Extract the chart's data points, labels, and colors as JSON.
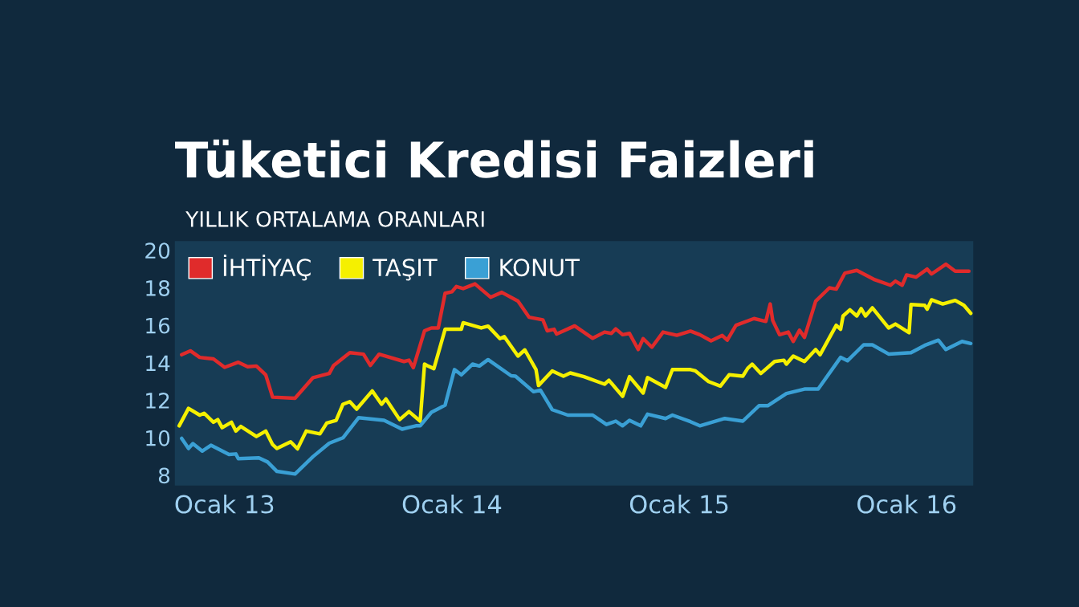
{
  "chart_data": {
    "type": "line",
    "title": "Tüketici Kredisi Faizleri",
    "subtitle": "YILLIK ORTALAMA ORANLARI",
    "xlim": [
      "2012-10-13",
      "2016-04-17"
    ],
    "xticks": [
      {
        "value": "2013-01-01",
        "label": "Ocak 13"
      },
      {
        "value": "2014-01-01",
        "label": "Ocak 14"
      },
      {
        "value": "2015-01-01",
        "label": "Ocak 15"
      },
      {
        "value": "2016-01-01",
        "label": "Ocak 16"
      }
    ],
    "ylim": [
      7.45,
      20.5
    ],
    "yticks": [
      8,
      10,
      12,
      14,
      16,
      18,
      20
    ],
    "legend": "top left",
    "line_style": "solid",
    "series": [
      {
        "name": "İHTİYAÇ",
        "color": "#e02b2b",
        "x": [
          "2012-10-24",
          "2012-11-07",
          "2012-11-22",
          "2012-12-14",
          "2013-01-01",
          "2013-01-23",
          "2013-02-07",
          "2013-02-21",
          "2013-03-08",
          "2013-03-19",
          "2013-04-24",
          "2013-05-23",
          "2013-06-18",
          "2013-06-25",
          "2013-07-21",
          "2013-08-12",
          "2013-08-23",
          "2013-09-06",
          "2013-10-16",
          "2013-10-24",
          "2013-10-31",
          "2013-11-18",
          "2013-11-29",
          "2013-12-10",
          "2013-12-21",
          "2014-01-01",
          "2014-01-08",
          "2014-01-19",
          "2014-02-07",
          "2014-03-04",
          "2014-03-22",
          "2014-04-17",
          "2014-05-05",
          "2014-05-27",
          "2014-06-03",
          "2014-06-14",
          "2014-06-18",
          "2014-07-17",
          "2014-08-15",
          "2014-09-03",
          "2014-09-14",
          "2014-09-21",
          "2014-10-02",
          "2014-10-13",
          "2014-10-27",
          "2014-11-04",
          "2014-11-18",
          "2014-12-06",
          "2014-12-28",
          "2015-01-19",
          "2015-02-03",
          "2015-02-21",
          "2015-03-11",
          "2015-03-19",
          "2015-04-02",
          "2015-05-01",
          "2015-05-20",
          "2015-05-27",
          "2015-05-31",
          "2015-06-11",
          "2015-06-25",
          "2015-07-03",
          "2015-07-13",
          "2015-07-21",
          "2015-08-08",
          "2015-08-30",
          "2015-09-10",
          "2015-09-24",
          "2015-10-13",
          "2015-11-11",
          "2015-12-06",
          "2015-12-14",
          "2015-12-25",
          "2016-01-01",
          "2016-01-16",
          "2016-02-03",
          "2016-02-10",
          "2016-03-04",
          "2016-03-19",
          "2016-04-10"
        ],
        "values": [
          14.43,
          14.64,
          14.29,
          14.21,
          13.76,
          14.03,
          13.79,
          13.83,
          13.36,
          12.17,
          12.11,
          13.21,
          13.43,
          13.86,
          14.54,
          14.46,
          13.86,
          14.46,
          14.07,
          14.14,
          13.74,
          15.71,
          15.86,
          15.86,
          17.71,
          17.79,
          18.07,
          17.96,
          18.21,
          17.5,
          17.76,
          17.29,
          16.43,
          16.29,
          15.71,
          15.79,
          15.54,
          15.97,
          15.31,
          15.64,
          15.57,
          15.81,
          15.5,
          15.57,
          14.71,
          15.29,
          14.83,
          15.64,
          15.47,
          15.69,
          15.5,
          15.17,
          15.46,
          15.21,
          16.0,
          16.36,
          16.21,
          17.14,
          16.26,
          15.5,
          15.64,
          15.14,
          15.74,
          15.36,
          17.29,
          18.0,
          17.93,
          18.79,
          18.93,
          18.43,
          18.14,
          18.36,
          18.14,
          18.69,
          18.57,
          19.0,
          18.74,
          19.26,
          18.89,
          18.89
        ]
      },
      {
        "name": "TAŞIT",
        "color": "#f5f000",
        "x": [
          "2012-10-20",
          "2012-11-04",
          "2012-11-22",
          "2012-11-29",
          "2012-12-14",
          "2012-12-21",
          "2012-12-28",
          "2013-01-12",
          "2013-01-19",
          "2013-01-27",
          "2013-02-21",
          "2013-03-08",
          "2013-03-19",
          "2013-03-26",
          "2013-04-17",
          "2013-04-28",
          "2013-05-12",
          "2013-06-03",
          "2013-06-14",
          "2013-06-29",
          "2013-07-10",
          "2013-07-21",
          "2013-08-01",
          "2013-08-26",
          "2013-09-10",
          "2013-09-17",
          "2013-10-09",
          "2013-10-24",
          "2013-11-11",
          "2013-11-18",
          "2013-11-22",
          "2013-12-03",
          "2013-12-21",
          "2014-01-16",
          "2014-01-19",
          "2014-02-17",
          "2014-02-28",
          "2014-03-19",
          "2014-03-26",
          "2014-04-17",
          "2014-04-28",
          "2014-05-16",
          "2014-05-20",
          "2014-06-11",
          "2014-06-29",
          "2014-07-10",
          "2014-08-01",
          "2014-09-03",
          "2014-09-10",
          "2014-10-02",
          "2014-10-13",
          "2014-11-04",
          "2014-11-11",
          "2014-12-10",
          "2014-12-21",
          "2015-01-19",
          "2015-01-27",
          "2015-02-17",
          "2015-03-08",
          "2015-03-22",
          "2015-04-13",
          "2015-04-21",
          "2015-04-28",
          "2015-05-12",
          "2015-06-03",
          "2015-06-18",
          "2015-06-22",
          "2015-07-03",
          "2015-07-21",
          "2015-08-08",
          "2015-08-15",
          "2015-09-10",
          "2015-09-17",
          "2015-09-21",
          "2015-10-02",
          "2015-10-13",
          "2015-10-20",
          "2015-10-27",
          "2015-11-07",
          "2015-12-03",
          "2015-12-14",
          "2016-01-05",
          "2016-01-08",
          "2016-01-30",
          "2016-02-03",
          "2016-02-10",
          "2016-02-28",
          "2016-03-19",
          "2016-04-02",
          "2016-04-13"
        ],
        "values": [
          10.64,
          11.57,
          11.21,
          11.31,
          10.83,
          10.97,
          10.54,
          10.83,
          10.36,
          10.61,
          10.07,
          10.36,
          9.64,
          9.43,
          9.79,
          9.41,
          10.36,
          10.21,
          10.79,
          10.93,
          11.79,
          11.93,
          11.53,
          12.5,
          11.79,
          12.07,
          10.97,
          11.4,
          10.89,
          13.93,
          13.86,
          13.69,
          15.79,
          15.79,
          16.14,
          15.86,
          15.96,
          15.29,
          15.4,
          14.36,
          14.69,
          13.64,
          12.79,
          13.57,
          13.29,
          13.46,
          13.26,
          12.86,
          13.07,
          12.21,
          13.26,
          12.39,
          13.21,
          12.69,
          13.64,
          13.64,
          13.57,
          13.0,
          12.76,
          13.36,
          13.29,
          13.71,
          13.93,
          13.43,
          14.07,
          14.14,
          13.93,
          14.36,
          14.07,
          14.71,
          14.43,
          16.0,
          15.79,
          16.5,
          16.83,
          16.5,
          16.89,
          16.5,
          16.93,
          15.86,
          16.07,
          15.61,
          17.11,
          17.07,
          16.86,
          17.36,
          17.14,
          17.33,
          17.07,
          16.64
        ]
      },
      {
        "name": "KONUT",
        "color": "#3aa0d5",
        "x": [
          "2012-10-24",
          "2012-11-04",
          "2012-11-11",
          "2012-11-26",
          "2012-12-10",
          "2013-01-08",
          "2013-01-19",
          "2013-01-23",
          "2013-02-25",
          "2013-03-11",
          "2013-03-26",
          "2013-04-24",
          "2013-05-23",
          "2013-06-18",
          "2013-07-10",
          "2013-08-04",
          "2013-09-14",
          "2013-10-13",
          "2013-11-04",
          "2013-11-11",
          "2013-11-29",
          "2013-12-21",
          "2014-01-05",
          "2014-01-16",
          "2014-02-03",
          "2014-02-14",
          "2014-02-28",
          "2014-04-06",
          "2014-04-13",
          "2014-05-12",
          "2014-05-23",
          "2014-06-11",
          "2014-07-06",
          "2014-08-15",
          "2014-09-06",
          "2014-09-21",
          "2014-10-02",
          "2014-10-13",
          "2014-10-31",
          "2014-11-11",
          "2014-12-10",
          "2014-12-21",
          "2015-01-19",
          "2015-02-03",
          "2015-03-15",
          "2015-04-13",
          "2015-05-09",
          "2015-05-23",
          "2015-06-22",
          "2015-07-21",
          "2015-08-12",
          "2015-09-17",
          "2015-09-28",
          "2015-10-24",
          "2015-11-07",
          "2015-12-03",
          "2016-01-08",
          "2016-01-30",
          "2016-02-21",
          "2016-03-04",
          "2016-03-30",
          "2016-04-13"
        ],
        "values": [
          9.97,
          9.43,
          9.69,
          9.29,
          9.6,
          9.11,
          9.14,
          8.89,
          8.93,
          8.71,
          8.21,
          8.07,
          9.0,
          9.71,
          10.0,
          11.07,
          10.93,
          10.46,
          10.64,
          10.64,
          11.36,
          11.74,
          13.64,
          13.36,
          13.93,
          13.83,
          14.17,
          13.31,
          13.29,
          12.46,
          12.54,
          11.5,
          11.21,
          11.21,
          10.71,
          10.89,
          10.64,
          10.93,
          10.64,
          11.26,
          11.03,
          11.21,
          10.86,
          10.64,
          11.03,
          10.89,
          11.71,
          11.71,
          12.36,
          12.6,
          12.6,
          14.29,
          14.11,
          14.96,
          14.96,
          14.47,
          14.54,
          14.93,
          15.21,
          14.71,
          15.14,
          15.03
        ]
      }
    ]
  }
}
